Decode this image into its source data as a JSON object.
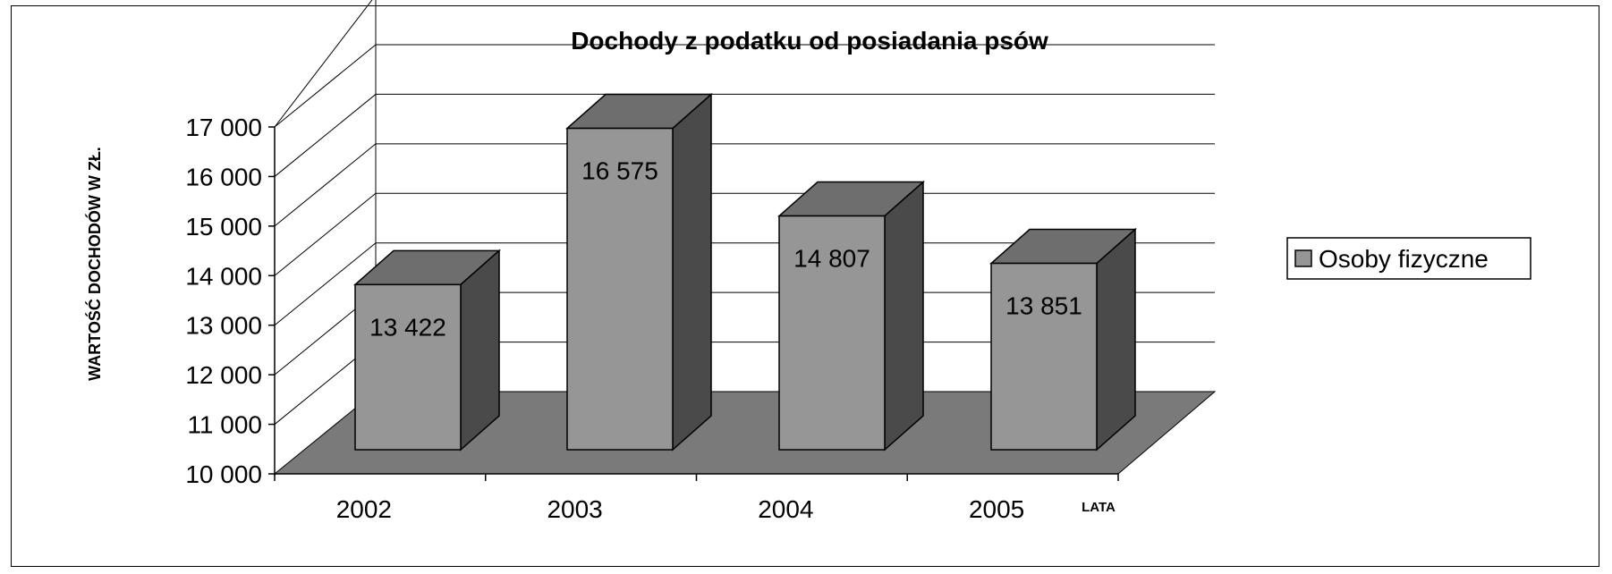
{
  "chart_data": {
    "type": "bar",
    "title": "Dochody z podatku od posiadania psów",
    "ylabel": "WARTOŚĆ DOCHODÓW W ZŁ.",
    "xlabel": "LATA",
    "categories": [
      "2002",
      "2003",
      "2004",
      "2005"
    ],
    "series": [
      {
        "name": "Osoby fizyczne",
        "values": [
          13422,
          16575,
          14807,
          13851
        ],
        "labels": [
          "13 422",
          "16 575",
          "14 807",
          "13 851"
        ]
      }
    ],
    "ylim": [
      10000,
      17000
    ],
    "yticks": [
      10000,
      11000,
      12000,
      13000,
      14000,
      15000,
      16000,
      17000
    ],
    "ytick_labels": [
      "10 000",
      "11 000",
      "12 000",
      "13 000",
      "14 000",
      "15 000",
      "16 000",
      "17 000"
    ],
    "grid": true,
    "legend_position": "right",
    "colors": {
      "bar_front": "#969696",
      "bar_top": "#6e6e6e",
      "bar_side": "#4a4a4a",
      "floor": "#7a7a7a",
      "grid": "#000000"
    }
  }
}
